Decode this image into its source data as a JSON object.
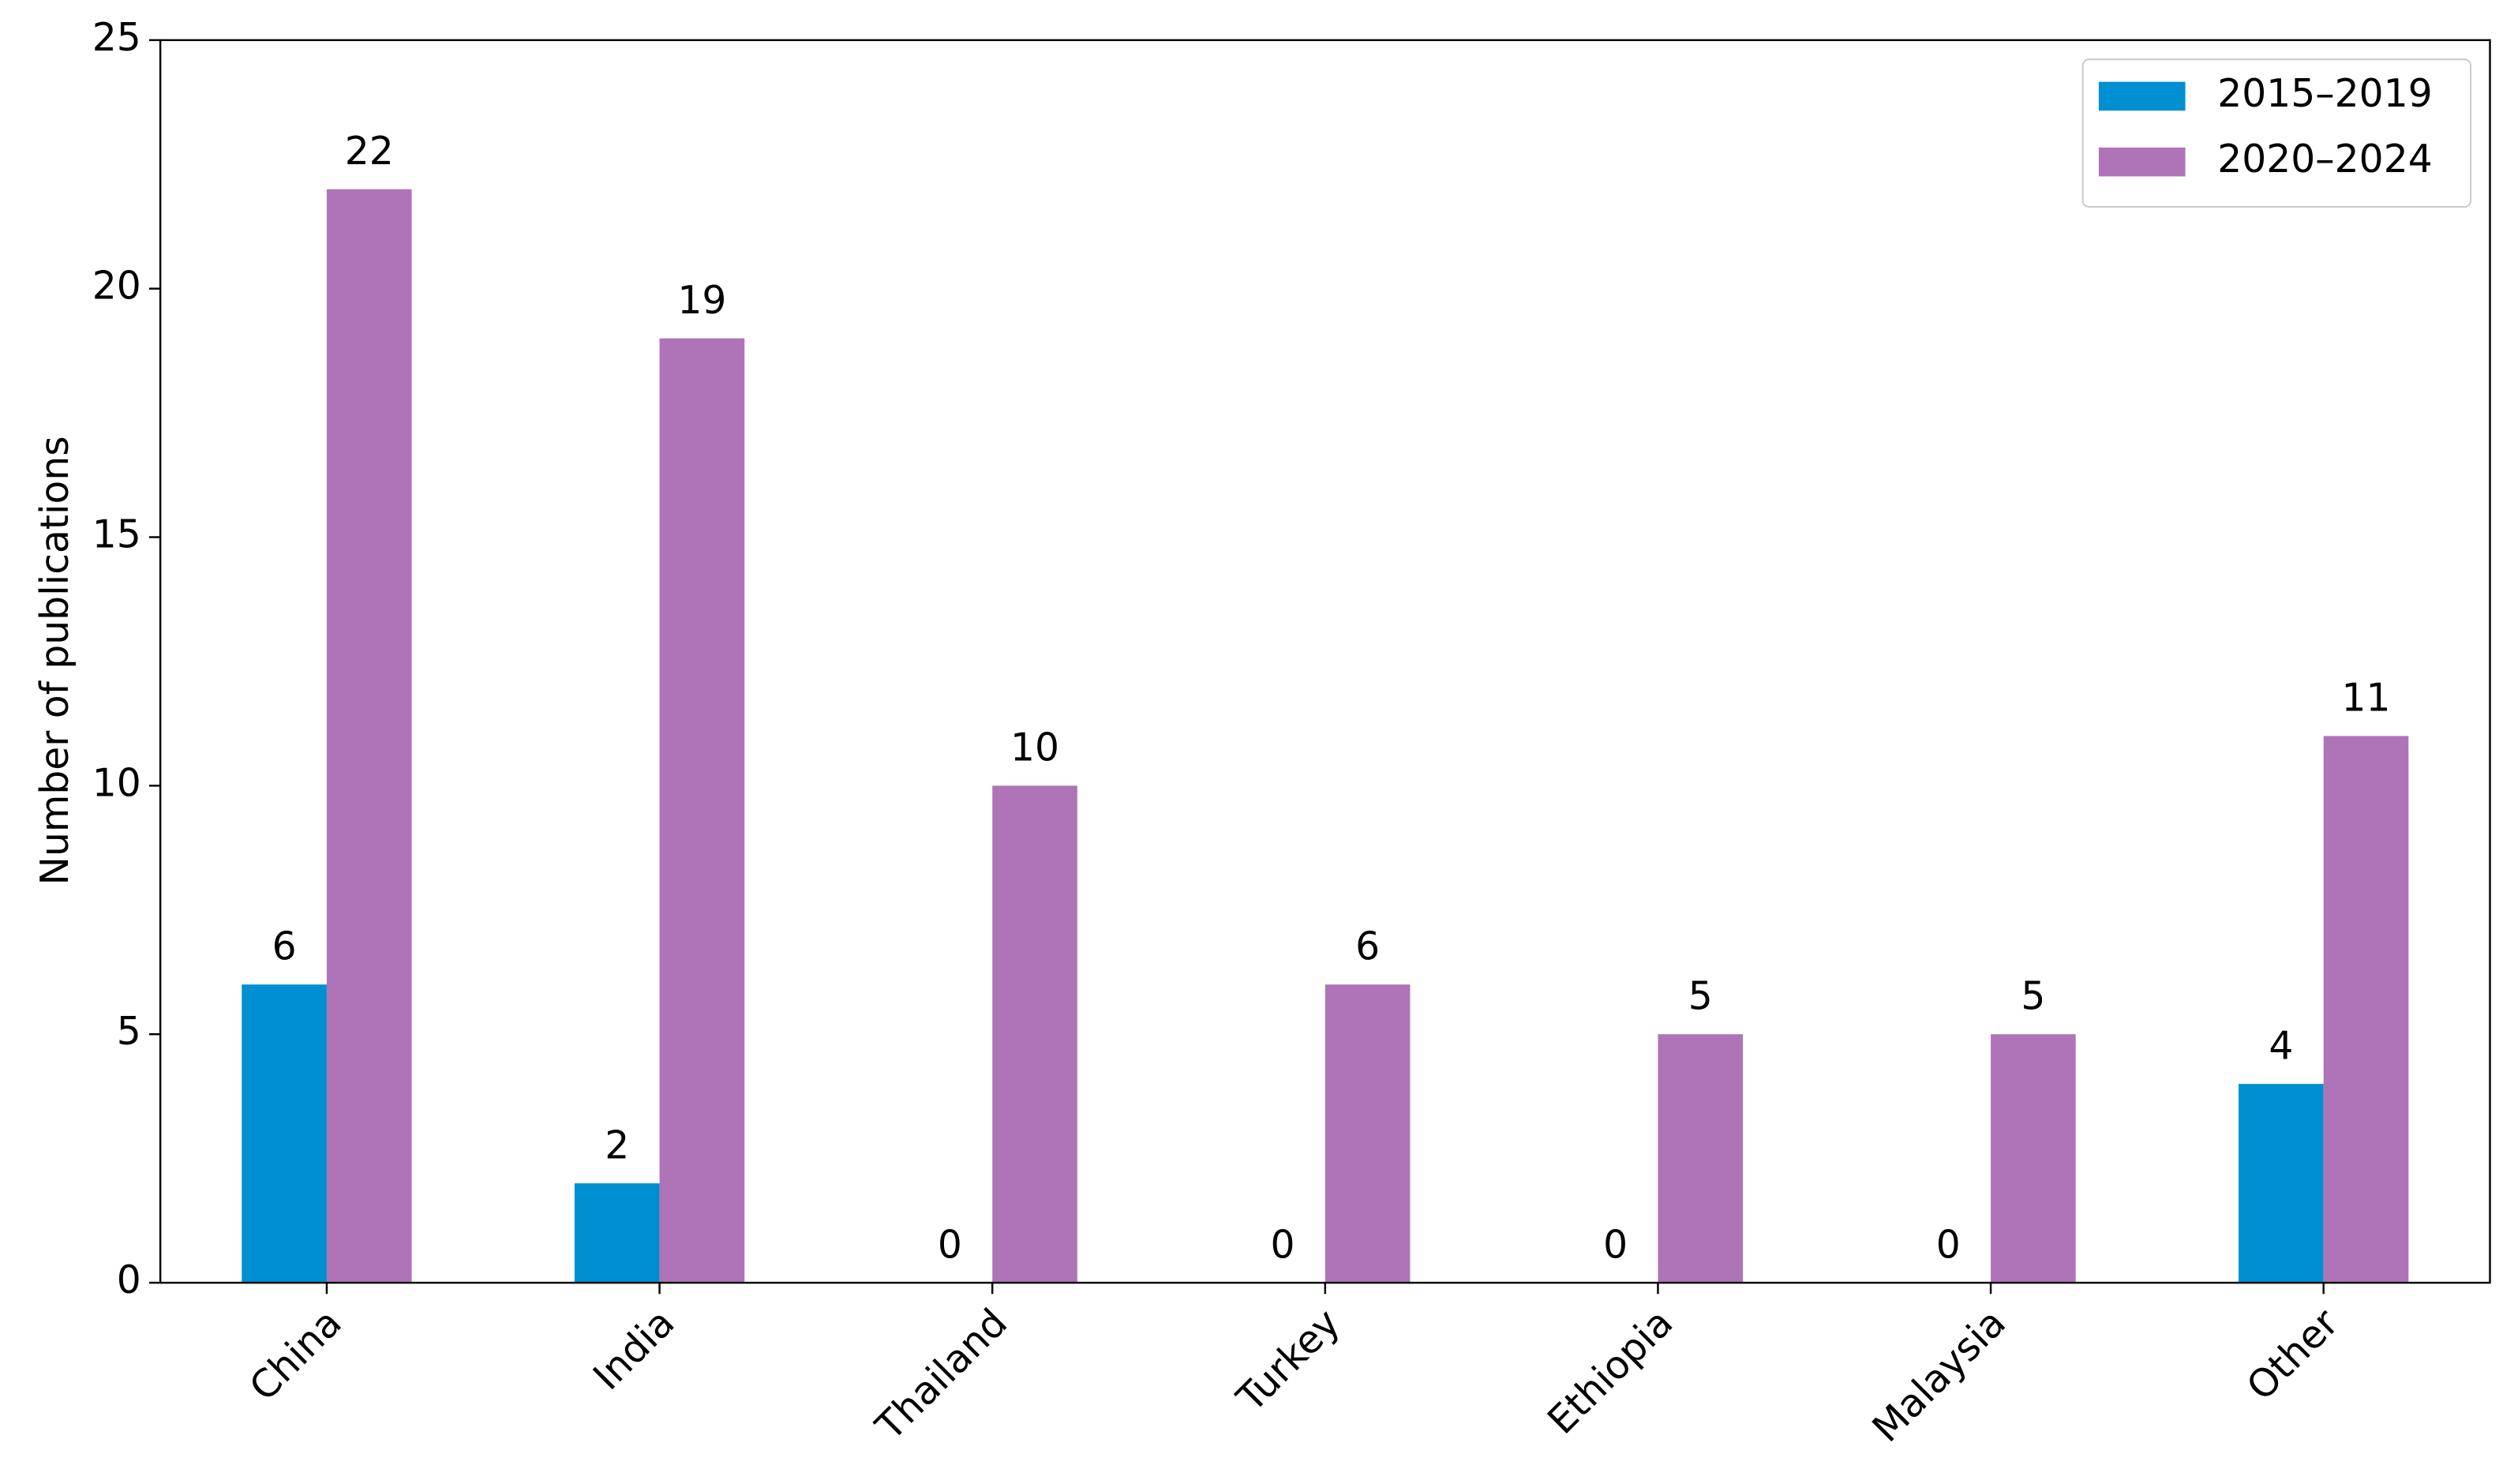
{
  "chart_data": {
    "type": "bar",
    "y_label": "Number of publications",
    "categories": [
      "China",
      "India",
      "Thailand",
      "Turkey",
      "Ethiopia",
      "Malaysia",
      "Other"
    ],
    "series": [
      {
        "name": "2015–2019",
        "color": "#008fd0",
        "values": [
          6,
          2,
          0,
          0,
          0,
          0,
          4
        ]
      },
      {
        "name": "2020–2024",
        "color": "#af74b7",
        "values": [
          22,
          19,
          10,
          6,
          5,
          5,
          11
        ]
      }
    ],
    "ylim": [
      0,
      25
    ],
    "yticks": [
      0,
      5,
      10,
      15,
      20,
      25
    ],
    "legend": "upper right",
    "grid": false
  }
}
